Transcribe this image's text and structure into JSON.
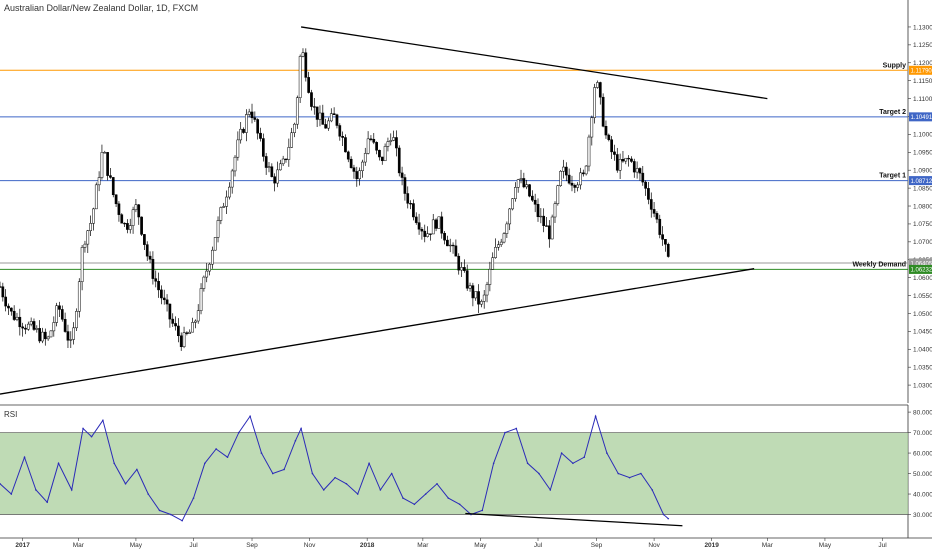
{
  "header": {
    "title": "Australian Dollar/New Zealand Dollar, 1D, FXCM"
  },
  "rsi_panel": {
    "label": "RSI"
  },
  "colors": {
    "supply": "#ff9800",
    "target": "#3f66c6",
    "demand": "#2e8b24",
    "rsi_line": "#2b2bb8",
    "rsi_band": "#aacf9c",
    "candle": "#000000"
  },
  "chart_data": [
    {
      "type": "candlestick",
      "title": "Australian Dollar/New Zealand Dollar, 1D, FXCM",
      "ylim": [
        1.025,
        1.1325
      ],
      "y_ticks": [
        "1.13000",
        "1.12500",
        "1.12000",
        "1.11500",
        "1.11000",
        "1.10500",
        "1.10000",
        "1.09500",
        "1.09000",
        "1.08500",
        "1.08000",
        "1.07500",
        "1.07000",
        "1.06500",
        "1.06000",
        "1.05500",
        "1.05000",
        "1.04500",
        "1.04000",
        "1.03500",
        "1.03000"
      ],
      "x_ticks": [
        "2017",
        "Mar",
        "May",
        "Jul",
        "Sep",
        "Nov",
        "2018",
        "Mar",
        "May",
        "Jul",
        "Sep",
        "Nov",
        "2019",
        "Mar",
        "May",
        "Jul"
      ],
      "close_series": {
        "dates": [
          "2016-12-08",
          "2016-12-20",
          "2017-01-03",
          "2017-01-15",
          "2017-01-27",
          "2017-02-08",
          "2017-02-22",
          "2017-03-06",
          "2017-03-15",
          "2017-03-27",
          "2017-04-08",
          "2017-04-20",
          "2017-05-02",
          "2017-05-14",
          "2017-05-26",
          "2017-06-07",
          "2017-06-19",
          "2017-07-01",
          "2017-07-13",
          "2017-07-25",
          "2017-08-06",
          "2017-08-18",
          "2017-08-30",
          "2017-09-11",
          "2017-09-23",
          "2017-10-05",
          "2017-10-17",
          "2017-10-23",
          "2017-11-04",
          "2017-11-16",
          "2017-11-28",
          "2017-12-10",
          "2017-12-22",
          "2018-01-03",
          "2018-01-15",
          "2018-01-27",
          "2018-02-08",
          "2018-02-20",
          "2018-03-04",
          "2018-03-16",
          "2018-03-28",
          "2018-04-09",
          "2018-04-21",
          "2018-05-03",
          "2018-05-15",
          "2018-05-27",
          "2018-06-08",
          "2018-06-20",
          "2018-07-02",
          "2018-07-14",
          "2018-07-26",
          "2018-08-07",
          "2018-08-19",
          "2018-08-31",
          "2018-09-12",
          "2018-09-24",
          "2018-10-06",
          "2018-10-18",
          "2018-10-30",
          "2018-11-11",
          "2018-11-16"
        ],
        "values": [
          1.0575,
          1.05,
          1.047,
          1.045,
          1.042,
          1.052,
          1.04,
          1.07,
          1.076,
          1.096,
          1.082,
          1.074,
          1.08,
          1.065,
          1.056,
          1.048,
          1.042,
          1.046,
          1.06,
          1.073,
          1.085,
          1.098,
          1.108,
          1.096,
          1.087,
          1.092,
          1.104,
          1.125,
          1.108,
          1.102,
          1.105,
          1.096,
          1.087,
          1.1,
          1.092,
          1.101,
          1.085,
          1.078,
          1.072,
          1.076,
          1.07,
          1.063,
          1.056,
          1.052,
          1.066,
          1.074,
          1.088,
          1.084,
          1.077,
          1.072,
          1.09,
          1.087,
          1.088,
          1.116,
          1.098,
          1.091,
          1.093,
          1.088,
          1.08,
          1.07,
          1.064
        ]
      },
      "horizontal_levels": [
        {
          "label": "Supply",
          "value": 1.1179,
          "tag": "1.11790",
          "color": "#ff9800"
        },
        {
          "label": "Target 2",
          "value": 1.1049,
          "tag": "1.10491",
          "color": "#3f66c6"
        },
        {
          "label": "Target 1",
          "value": 1.0871,
          "tag": "1.08712",
          "color": "#3f66c6"
        },
        {
          "label": "",
          "value": 1.0641,
          "tag": "1.06405",
          "color": "#9a9a9a"
        },
        {
          "label": "Weekly Demand",
          "value": 1.0623,
          "tag": "1.06232",
          "color": "#2e8b24"
        }
      ],
      "trendlines": [
        {
          "from": [
            "2017-10-23",
            1.13
          ],
          "to": [
            "2019-03-01",
            1.11
          ]
        },
        {
          "from": [
            "2016-12-08",
            1.0275
          ],
          "to": [
            "2019-02-15",
            1.0625
          ]
        }
      ]
    },
    {
      "type": "line",
      "title": "RSI",
      "ylim": [
        20,
        82
      ],
      "y_ticks": [
        "80.0000",
        "70.0000",
        "60.0000",
        "50.0000",
        "40.0000",
        "30.0000"
      ],
      "band": [
        30,
        70
      ],
      "dates": [
        "2016-12-08",
        "2016-12-20",
        "2017-01-03",
        "2017-01-15",
        "2017-01-27",
        "2017-02-08",
        "2017-02-22",
        "2017-03-06",
        "2017-03-15",
        "2017-03-27",
        "2017-04-08",
        "2017-04-20",
        "2017-05-02",
        "2017-05-14",
        "2017-05-26",
        "2017-06-07",
        "2017-06-19",
        "2017-07-01",
        "2017-07-13",
        "2017-07-25",
        "2017-08-06",
        "2017-08-18",
        "2017-08-30",
        "2017-09-11",
        "2017-09-23",
        "2017-10-05",
        "2017-10-17",
        "2017-10-23",
        "2017-11-04",
        "2017-11-16",
        "2017-11-28",
        "2017-12-10",
        "2017-12-22",
        "2018-01-03",
        "2018-01-15",
        "2018-01-27",
        "2018-02-08",
        "2018-02-20",
        "2018-03-04",
        "2018-03-16",
        "2018-03-28",
        "2018-04-09",
        "2018-04-21",
        "2018-05-03",
        "2018-05-15",
        "2018-05-27",
        "2018-06-08",
        "2018-06-20",
        "2018-07-02",
        "2018-07-14",
        "2018-07-26",
        "2018-08-07",
        "2018-08-19",
        "2018-08-31",
        "2018-09-12",
        "2018-09-24",
        "2018-10-06",
        "2018-10-18",
        "2018-10-30",
        "2018-11-11",
        "2018-11-16"
      ],
      "values": [
        45,
        40,
        58,
        42,
        36,
        55,
        42,
        72,
        68,
        76,
        55,
        45,
        52,
        40,
        32,
        30,
        27,
        38,
        55,
        62,
        58,
        70,
        78,
        60,
        50,
        52,
        66,
        72,
        50,
        42,
        48,
        45,
        40,
        55,
        42,
        50,
        38,
        35,
        40,
        45,
        38,
        35,
        30,
        32,
        55,
        70,
        72,
        55,
        50,
        42,
        60,
        55,
        58,
        78,
        60,
        50,
        48,
        50,
        42,
        30,
        28
      ]
    }
  ]
}
